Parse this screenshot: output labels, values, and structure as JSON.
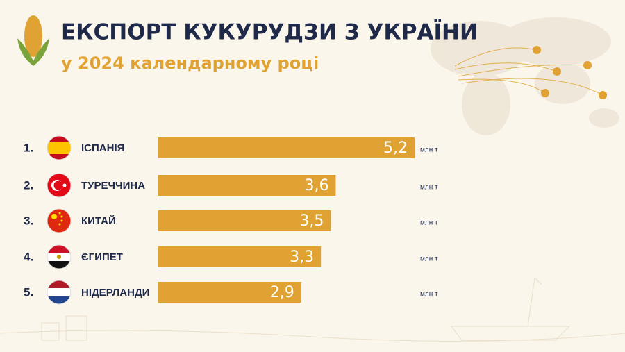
{
  "chart_data": {
    "type": "bar",
    "orientation": "horizontal",
    "title": "ЕКСПОРТ КУКУРУДЗИ З УКРАЇНИ",
    "subtitle": "у 2024 календарному році",
    "ranks": [
      "1.",
      "2.",
      "3.",
      "4.",
      "5."
    ],
    "categories": [
      "ІСПАНІЯ",
      "ТУРЕЧЧИНА",
      "КИТАЙ",
      "ЄГИПЕТ",
      "НІДЕРЛАНДИ"
    ],
    "values": [
      5.2,
      3.6,
      3.5,
      3.3,
      2.9
    ],
    "value_labels": [
      "5,2",
      "3,6",
      "3,5",
      "3,3",
      "2,9"
    ],
    "unit": "млн т",
    "color": "#e0a232"
  }
}
